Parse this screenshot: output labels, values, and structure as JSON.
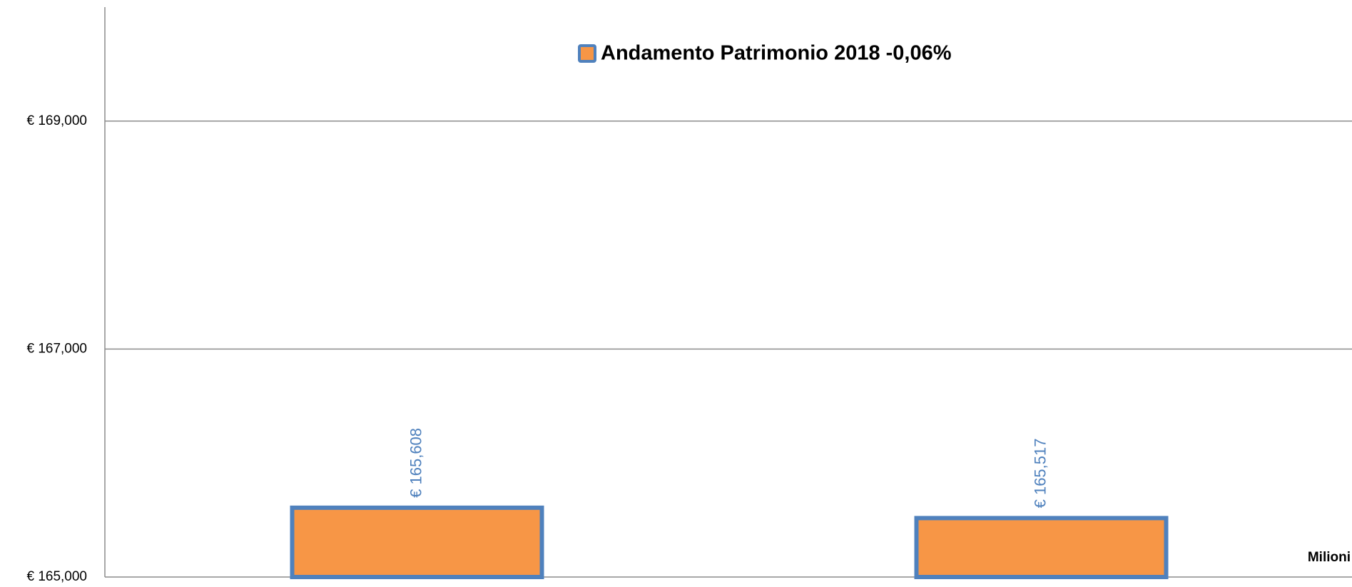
{
  "chart_data": {
    "type": "bar",
    "categories": [
      null,
      null
    ],
    "series": [
      {
        "name": "Andamento Patrimonio 2018 -0,06%",
        "color": "#f79646",
        "edge_color": "#4f81bd",
        "values": [
          165608,
          165517
        ],
        "value_labels": [
          "€ 165,608",
          "€ 165,517"
        ]
      }
    ],
    "ylim": [
      165000,
      170000
    ],
    "yticks": [
      {
        "value": 165000,
        "label": "€ 165,000"
      },
      {
        "value": 167000,
        "label": "€ 167,000"
      },
      {
        "value": 169000,
        "label": "€ 169,000"
      }
    ],
    "grid": true,
    "legend": "top",
    "annotations": [
      "Milioni"
    ]
  }
}
